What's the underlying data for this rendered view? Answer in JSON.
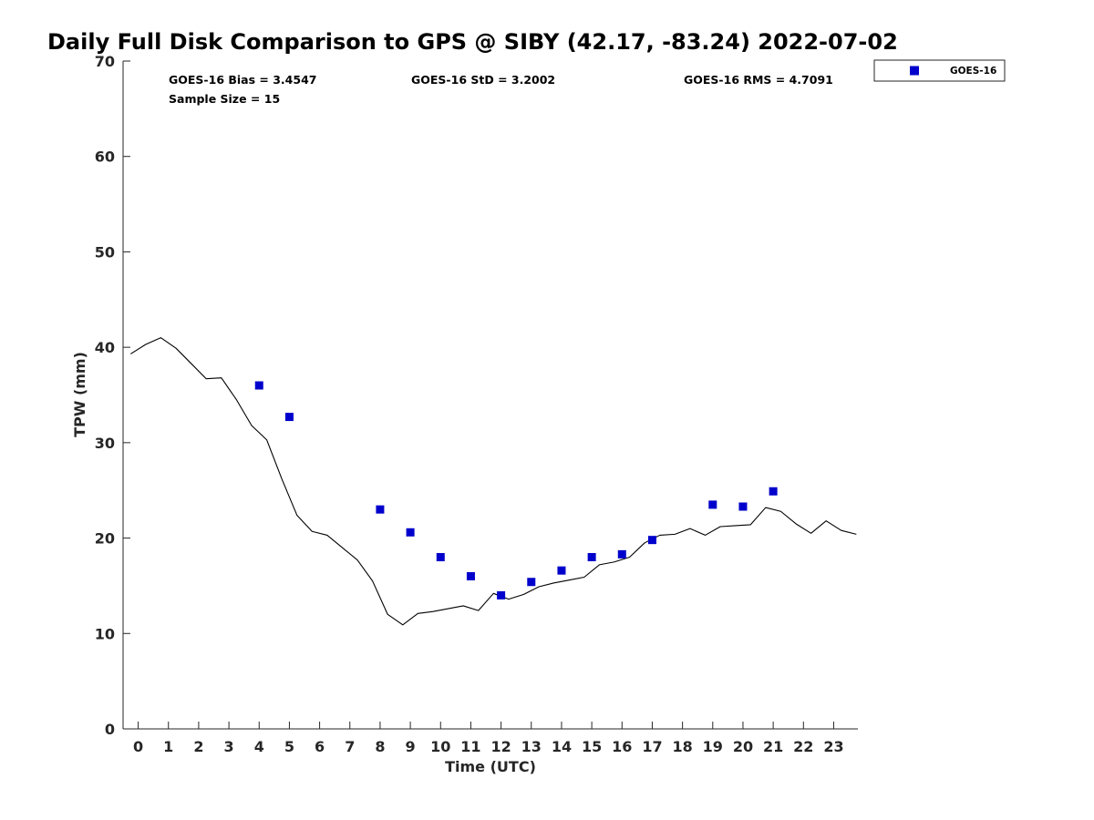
{
  "chart_data": {
    "type": "scatter",
    "title": "Daily Full Disk Comparison to GPS @ SIBY (42.17, -83.24) 2022-07-02",
    "xlabel": "Time (UTC)",
    "ylabel": "TPW (mm)",
    "xlim": [
      -0.5,
      23.8
    ],
    "ylim": [
      0,
      70
    ],
    "xticks": [
      "0",
      "1",
      "2",
      "3",
      "4",
      "5",
      "6",
      "7",
      "8",
      "9",
      "10",
      "11",
      "12",
      "13",
      "14",
      "15",
      "16",
      "17",
      "18",
      "19",
      "20",
      "21",
      "22",
      "23"
    ],
    "yticks": [
      "0",
      "10",
      "20",
      "30",
      "40",
      "50",
      "60",
      "70"
    ],
    "stats": {
      "bias": "GOES-16 Bias = 3.4547",
      "std": "GOES-16 StD = 3.2002",
      "rms": "GOES-16 RMS = 4.7091",
      "sample": "Sample Size = 15"
    },
    "legend": [
      {
        "name": "GOES-16",
        "color": "#0000cc"
      }
    ],
    "series": [
      {
        "name": "GOES-16",
        "kind": "scatter",
        "color": "#0000cc",
        "x": [
          4,
          5,
          8,
          9,
          10,
          11,
          12,
          13,
          14,
          15,
          16,
          17,
          19,
          20,
          21
        ],
        "y": [
          36.0,
          32.7,
          23.0,
          20.6,
          18.0,
          16.0,
          14.0,
          15.4,
          16.6,
          18.0,
          18.3,
          19.8,
          23.5,
          23.3,
          24.9
        ]
      },
      {
        "name": "GPS",
        "kind": "line",
        "color": "#000000",
        "x": [
          -0.25,
          0.25,
          0.75,
          1.25,
          1.75,
          2.25,
          2.75,
          3.25,
          3.75,
          4.25,
          4.75,
          5.25,
          5.75,
          6.25,
          6.75,
          7.25,
          7.75,
          8.25,
          8.75,
          9.25,
          9.75,
          10.25,
          10.75,
          11.25,
          11.75,
          12.25,
          12.75,
          13.25,
          13.75,
          14.25,
          14.75,
          15.25,
          15.75,
          16.25,
          16.75,
          17.25,
          17.75,
          18.25,
          18.75,
          19.25,
          19.75,
          20.25,
          20.75,
          21.25,
          21.75,
          22.25,
          22.75,
          23.25,
          23.75
        ],
        "y": [
          39.3,
          40.3,
          41.0,
          39.9,
          38.3,
          36.7,
          36.8,
          34.5,
          31.8,
          30.3,
          26.2,
          22.4,
          20.7,
          20.3,
          19.0,
          17.7,
          15.5,
          12.0,
          10.9,
          12.1,
          12.3,
          12.6,
          12.9,
          12.4,
          14.2,
          13.6,
          14.1,
          14.9,
          15.3,
          15.6,
          15.9,
          17.2,
          17.5,
          18.0,
          19.5,
          20.3,
          20.4,
          21.0,
          20.3,
          21.2,
          21.3,
          21.4,
          23.2,
          22.8,
          21.5,
          20.5,
          21.8,
          20.8,
          20.4
        ]
      }
    ]
  }
}
